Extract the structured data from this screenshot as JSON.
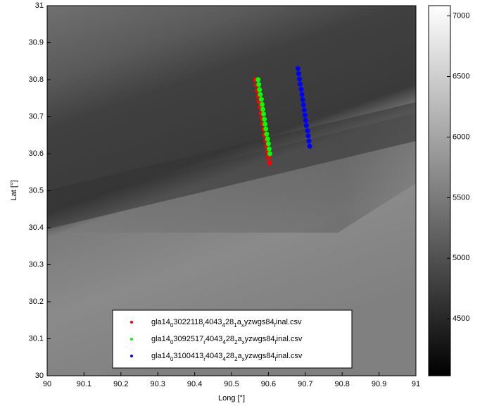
{
  "chart_data": {
    "type": "scatter",
    "x_label": "Long [°]",
    "y_label": "Lat [°]",
    "xlim": [
      90,
      91
    ],
    "xticks": [
      90,
      90.1,
      90.2,
      90.3,
      90.4,
      90.5,
      90.6,
      90.7,
      90.8,
      90.9,
      91
    ],
    "ylim": [
      30,
      31
    ],
    "yticks": [
      30,
      30.1,
      30.2,
      30.3,
      30.4,
      30.5,
      30.6,
      30.7,
      30.8,
      30.9,
      31
    ],
    "colorbar": {
      "lim": [
        4030,
        7085
      ],
      "ticks": [
        4500,
        5000,
        5500,
        6000,
        6500,
        7000
      ],
      "colormap": "gray"
    },
    "legend": "lower center",
    "series": [
      {
        "name": "gla14_03022118_r4043_428_1a_xyzwgs84_final.csv",
        "color": "#ff0000",
        "x": [
          90.565,
          90.568,
          90.57,
          90.573,
          90.575,
          90.578,
          90.58,
          90.583,
          90.585,
          90.588,
          90.59,
          90.593,
          90.595,
          90.598,
          90.6,
          90.603
        ],
        "y": [
          30.8,
          30.785,
          30.77,
          30.755,
          30.74,
          30.725,
          30.71,
          30.695,
          30.68,
          30.665,
          30.65,
          30.635,
          30.62,
          30.605,
          30.59,
          30.575
        ]
      },
      {
        "name": "gla14_03092517_r4043_428_2a_xyzwgs84_final.csv",
        "color": "#00ff00",
        "x": [
          90.572,
          90.574,
          90.576,
          90.578,
          90.581,
          90.583,
          90.585,
          90.587,
          90.589,
          90.591,
          90.593,
          90.595,
          90.598,
          90.6,
          90.602,
          90.604
        ],
        "y": [
          30.8,
          30.787,
          30.773,
          30.76,
          30.747,
          30.733,
          30.72,
          30.707,
          30.693,
          30.68,
          30.667,
          30.653,
          30.64,
          30.627,
          30.613,
          30.6
        ]
      },
      {
        "name": "gla14_03100413_r4043_428_2a_xyzwgs84_final.csv",
        "color": "#0000ff",
        "x": [
          90.68,
          90.682,
          90.684,
          90.686,
          90.689,
          90.691,
          90.693,
          90.695,
          90.697,
          90.699,
          90.701,
          90.703,
          90.706,
          90.708,
          90.71,
          90.712
        ],
        "y": [
          30.83,
          30.816,
          30.802,
          30.788,
          30.774,
          30.76,
          30.746,
          30.732,
          30.718,
          30.704,
          30.69,
          30.676,
          30.662,
          30.648,
          30.634,
          30.62
        ]
      }
    ]
  }
}
